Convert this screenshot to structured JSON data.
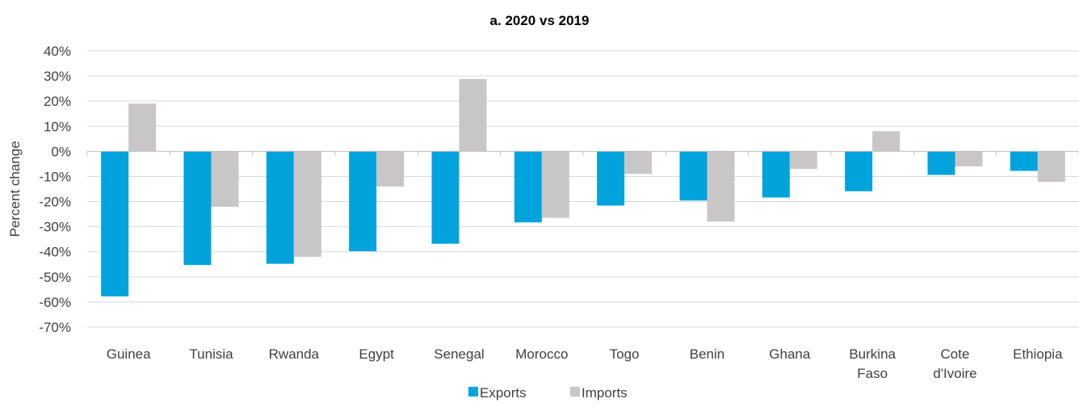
{
  "chart_data": {
    "type": "bar",
    "title": "a. 2020 vs 2019",
    "xlabel": "",
    "ylabel": "Percent change",
    "ylim": [
      -70,
      40
    ],
    "yticks": [
      40,
      30,
      20,
      10,
      0,
      -10,
      -20,
      -30,
      -40,
      -50,
      -60,
      -70
    ],
    "ytick_labels": [
      "40%",
      "30%",
      "20%",
      "10%",
      "0%",
      "-10%",
      "-20%",
      "-30%",
      "-40%",
      "-50%",
      "-60%",
      "-70%"
    ],
    "grid": true,
    "legend_position": "bottom",
    "categories": [
      [
        "Guinea"
      ],
      [
        "Tunisia"
      ],
      [
        "Rwanda"
      ],
      [
        "Egypt"
      ],
      [
        "Senegal"
      ],
      [
        "Morocco"
      ],
      [
        "Togo"
      ],
      [
        "Benin"
      ],
      [
        "Ghana"
      ],
      [
        "Burkina",
        "Faso"
      ],
      [
        "Cote",
        "d'Ivoire"
      ],
      [
        "Ethiopia"
      ]
    ],
    "series": [
      {
        "name": "Exports",
        "color": "#00A3DC",
        "values": [
          -57.8,
          -45.3,
          -44.8,
          -39.8,
          -36.8,
          -28.3,
          -21.6,
          -19.6,
          -18.4,
          -15.9,
          -9.4,
          -7.8
        ]
      },
      {
        "name": "Imports",
        "color": "#C8C6C7",
        "values": [
          19.0,
          -22.1,
          -42.0,
          -14.0,
          28.8,
          -26.5,
          -9.0,
          -28.0,
          -7.0,
          8.0,
          -6.0,
          -12.2
        ]
      }
    ]
  }
}
